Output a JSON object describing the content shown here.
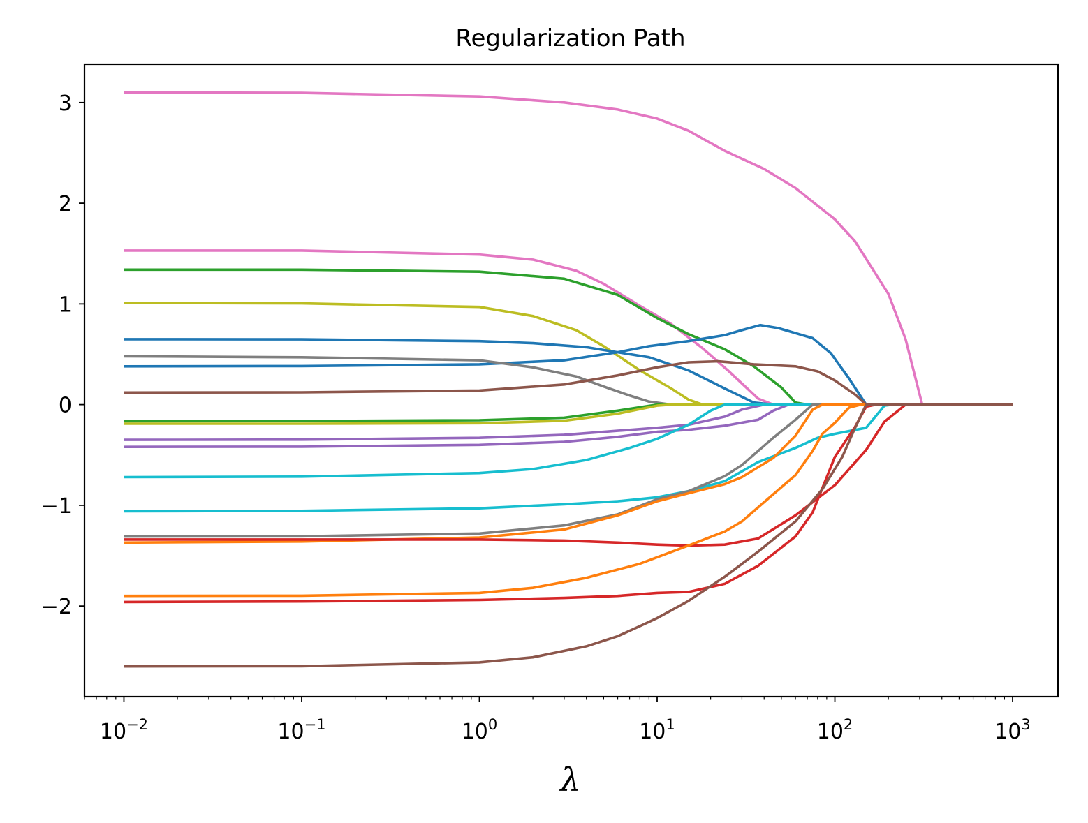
{
  "chart_data": {
    "type": "line",
    "title": "Regularization Path",
    "xlabel": "λ",
    "ylabel": "",
    "xscale": "log",
    "xlim": [
      0.006,
      1800
    ],
    "ylim": [
      -2.9,
      3.38
    ],
    "grid": false,
    "legend": "none",
    "xticks": [
      {
        "value": 0.01,
        "base": "10",
        "exp": "−2"
      },
      {
        "value": 0.1,
        "base": "10",
        "exp": "−1"
      },
      {
        "value": 1,
        "base": "10",
        "exp": "0"
      },
      {
        "value": 10,
        "base": "10",
        "exp": "1"
      },
      {
        "value": 100,
        "base": "10",
        "exp": "2"
      },
      {
        "value": 1000,
        "base": "10",
        "exp": "3"
      }
    ],
    "yticks": [
      {
        "value": 3,
        "label": "3"
      },
      {
        "value": 2,
        "label": "2"
      },
      {
        "value": 1,
        "label": "1"
      },
      {
        "value": 0,
        "label": "0"
      },
      {
        "value": -1,
        "label": "−1"
      },
      {
        "value": -2,
        "label": "−2"
      }
    ],
    "series": [
      {
        "color": "#e377c2",
        "points": [
          [
            0.01,
            3.1
          ],
          [
            0.1,
            3.095
          ],
          [
            1,
            3.06
          ],
          [
            3,
            3.0
          ],
          [
            6,
            2.93
          ],
          [
            10,
            2.84
          ],
          [
            15,
            2.72
          ],
          [
            24,
            2.52
          ],
          [
            40,
            2.34
          ],
          [
            60,
            2.15
          ],
          [
            100,
            1.84
          ],
          [
            130,
            1.62
          ],
          [
            200,
            1.1
          ],
          [
            250,
            0.65
          ],
          [
            310,
            0.0
          ],
          [
            1000,
            0.0
          ]
        ]
      },
      {
        "color": "#e377c2",
        "points": [
          [
            0.01,
            1.53
          ],
          [
            0.1,
            1.53
          ],
          [
            1,
            1.49
          ],
          [
            2,
            1.44
          ],
          [
            3.5,
            1.33
          ],
          [
            5,
            1.2
          ],
          [
            8,
            0.98
          ],
          [
            12,
            0.8
          ],
          [
            18,
            0.56
          ],
          [
            25,
            0.34
          ],
          [
            37,
            0.06
          ],
          [
            45,
            0.0
          ],
          [
            1000,
            0.0
          ]
        ]
      },
      {
        "color": "#2ca02c",
        "points": [
          [
            0.01,
            1.34
          ],
          [
            0.1,
            1.34
          ],
          [
            1,
            1.32
          ],
          [
            3,
            1.25
          ],
          [
            6,
            1.09
          ],
          [
            10,
            0.86
          ],
          [
            15,
            0.7
          ],
          [
            24,
            0.55
          ],
          [
            35,
            0.38
          ],
          [
            50,
            0.17
          ],
          [
            60,
            0.02
          ],
          [
            70,
            0.0
          ],
          [
            1000,
            0.0
          ]
        ]
      },
      {
        "color": "#bcbd22",
        "points": [
          [
            0.01,
            1.01
          ],
          [
            0.1,
            1.005
          ],
          [
            1,
            0.97
          ],
          [
            2,
            0.88
          ],
          [
            3.5,
            0.74
          ],
          [
            5,
            0.58
          ],
          [
            8,
            0.34
          ],
          [
            12,
            0.16
          ],
          [
            15,
            0.05
          ],
          [
            18,
            0.0
          ],
          [
            1000,
            0.0
          ]
        ]
      },
      {
        "color": "#1f77b4",
        "points": [
          [
            0.01,
            0.65
          ],
          [
            0.1,
            0.648
          ],
          [
            1,
            0.63
          ],
          [
            2,
            0.61
          ],
          [
            4,
            0.57
          ],
          [
            6,
            0.52
          ],
          [
            9,
            0.47
          ],
          [
            15,
            0.34
          ],
          [
            24,
            0.16
          ],
          [
            35,
            0.02
          ],
          [
            45,
            0.0
          ],
          [
            1000,
            0.0
          ]
        ]
      },
      {
        "color": "#1f77b4",
        "points": [
          [
            0.01,
            0.38
          ],
          [
            0.1,
            0.383
          ],
          [
            1,
            0.4
          ],
          [
            3,
            0.44
          ],
          [
            6,
            0.52
          ],
          [
            9,
            0.58
          ],
          [
            15,
            0.63
          ],
          [
            24,
            0.69
          ],
          [
            30,
            0.74
          ],
          [
            38,
            0.79
          ],
          [
            48,
            0.76
          ],
          [
            75,
            0.66
          ],
          [
            95,
            0.51
          ],
          [
            120,
            0.26
          ],
          [
            150,
            0.0
          ],
          [
            1000,
            0.0
          ]
        ]
      },
      {
        "color": "#7f7f7f",
        "points": [
          [
            0.01,
            0.48
          ],
          [
            0.1,
            0.47
          ],
          [
            1,
            0.44
          ],
          [
            2,
            0.37
          ],
          [
            3.5,
            0.28
          ],
          [
            5,
            0.18
          ],
          [
            7,
            0.09
          ],
          [
            9,
            0.03
          ],
          [
            12,
            0.0
          ],
          [
            1000,
            0.0
          ]
        ]
      },
      {
        "color": "#8c564b",
        "points": [
          [
            0.01,
            0.12
          ],
          [
            0.1,
            0.122
          ],
          [
            1,
            0.14
          ],
          [
            3,
            0.2
          ],
          [
            6,
            0.29
          ],
          [
            10,
            0.37
          ],
          [
            15,
            0.42
          ],
          [
            22,
            0.43
          ],
          [
            35,
            0.4
          ],
          [
            60,
            0.38
          ],
          [
            80,
            0.33
          ],
          [
            100,
            0.24
          ],
          [
            130,
            0.1
          ],
          [
            150,
            0.0
          ],
          [
            1000,
            0.0
          ]
        ]
      },
      {
        "color": "#2ca02c",
        "points": [
          [
            0.01,
            -0.165
          ],
          [
            0.1,
            -0.163
          ],
          [
            1,
            -0.155
          ],
          [
            3,
            -0.13
          ],
          [
            6,
            -0.06
          ],
          [
            10,
            0.0
          ],
          [
            1000,
            0.0
          ]
        ]
      },
      {
        "color": "#bcbd22",
        "points": [
          [
            0.01,
            -0.19
          ],
          [
            0.1,
            -0.19
          ],
          [
            1,
            -0.185
          ],
          [
            3,
            -0.16
          ],
          [
            6,
            -0.09
          ],
          [
            10,
            -0.01
          ],
          [
            12,
            0.0
          ],
          [
            1000,
            0.0
          ]
        ]
      },
      {
        "color": "#9467bd",
        "points": [
          [
            0.01,
            -0.35
          ],
          [
            0.1,
            -0.348
          ],
          [
            1,
            -0.33
          ],
          [
            3,
            -0.3
          ],
          [
            6,
            -0.26
          ],
          [
            10,
            -0.23
          ],
          [
            15,
            -0.2
          ],
          [
            24,
            -0.12
          ],
          [
            30,
            -0.05
          ],
          [
            40,
            0.0
          ],
          [
            1000,
            0.0
          ]
        ]
      },
      {
        "color": "#9467bd",
        "points": [
          [
            0.01,
            -0.42
          ],
          [
            0.1,
            -0.418
          ],
          [
            1,
            -0.4
          ],
          [
            3,
            -0.37
          ],
          [
            6,
            -0.32
          ],
          [
            10,
            -0.27
          ],
          [
            15,
            -0.25
          ],
          [
            24,
            -0.21
          ],
          [
            37,
            -0.15
          ],
          [
            45,
            -0.06
          ],
          [
            55,
            0.0
          ],
          [
            1000,
            0.0
          ]
        ]
      },
      {
        "color": "#17becf",
        "points": [
          [
            0.01,
            -0.72
          ],
          [
            0.1,
            -0.715
          ],
          [
            1,
            -0.68
          ],
          [
            2,
            -0.64
          ],
          [
            4,
            -0.55
          ],
          [
            7,
            -0.43
          ],
          [
            10,
            -0.34
          ],
          [
            15,
            -0.2
          ],
          [
            20,
            -0.06
          ],
          [
            24,
            0.0
          ],
          [
            1000,
            0.0
          ]
        ]
      },
      {
        "color": "#17becf",
        "points": [
          [
            0.01,
            -1.06
          ],
          [
            0.1,
            -1.055
          ],
          [
            1,
            -1.03
          ],
          [
            3,
            -0.99
          ],
          [
            6,
            -0.96
          ],
          [
            10,
            -0.92
          ],
          [
            15,
            -0.86
          ],
          [
            24,
            -0.76
          ],
          [
            37,
            -0.57
          ],
          [
            60,
            -0.43
          ],
          [
            80,
            -0.33
          ],
          [
            100,
            -0.29
          ],
          [
            150,
            -0.23
          ],
          [
            190,
            -0.01
          ],
          [
            210,
            0.0
          ],
          [
            1000,
            0.0
          ]
        ]
      },
      {
        "color": "#7f7f7f",
        "points": [
          [
            0.01,
            -1.31
          ],
          [
            0.1,
            -1.308
          ],
          [
            1,
            -1.28
          ],
          [
            3,
            -1.2
          ],
          [
            6,
            -1.09
          ],
          [
            10,
            -0.94
          ],
          [
            15,
            -0.86
          ],
          [
            24,
            -0.71
          ],
          [
            30,
            -0.6
          ],
          [
            45,
            -0.33
          ],
          [
            60,
            -0.15
          ],
          [
            75,
            0.0
          ],
          [
            1000,
            0.0
          ]
        ]
      },
      {
        "color": "#ff7f0e",
        "points": [
          [
            0.01,
            -1.37
          ],
          [
            0.1,
            -1.36
          ],
          [
            1,
            -1.32
          ],
          [
            3,
            -1.24
          ],
          [
            6,
            -1.1
          ],
          [
            10,
            -0.96
          ],
          [
            15,
            -0.88
          ],
          [
            24,
            -0.79
          ],
          [
            30,
            -0.72
          ],
          [
            45,
            -0.53
          ],
          [
            60,
            -0.31
          ],
          [
            75,
            -0.05
          ],
          [
            85,
            0.0
          ],
          [
            1000,
            0.0
          ]
        ]
      },
      {
        "color": "#d62728",
        "points": [
          [
            0.01,
            -1.34
          ],
          [
            0.1,
            -1.34
          ],
          [
            1,
            -1.34
          ],
          [
            3,
            -1.35
          ],
          [
            6,
            -1.37
          ],
          [
            10,
            -1.39
          ],
          [
            15,
            -1.4
          ],
          [
            24,
            -1.39
          ],
          [
            37,
            -1.33
          ],
          [
            60,
            -1.1
          ],
          [
            100,
            -0.8
          ],
          [
            150,
            -0.45
          ],
          [
            190,
            -0.17
          ],
          [
            250,
            0.0
          ],
          [
            1000,
            0.0
          ]
        ]
      },
      {
        "color": "#ff7f0e",
        "points": [
          [
            0.01,
            -1.9
          ],
          [
            0.1,
            -1.898
          ],
          [
            1,
            -1.87
          ],
          [
            2,
            -1.82
          ],
          [
            4,
            -1.72
          ],
          [
            8,
            -1.58
          ],
          [
            15,
            -1.4
          ],
          [
            24,
            -1.26
          ],
          [
            30,
            -1.16
          ],
          [
            45,
            -0.89
          ],
          [
            60,
            -0.7
          ],
          [
            75,
            -0.46
          ],
          [
            85,
            -0.29
          ],
          [
            100,
            -0.18
          ],
          [
            120,
            -0.03
          ],
          [
            140,
            0.0
          ],
          [
            1000,
            0.0
          ]
        ]
      },
      {
        "color": "#d62728",
        "points": [
          [
            0.01,
            -1.96
          ],
          [
            0.1,
            -1.955
          ],
          [
            1,
            -1.94
          ],
          [
            3,
            -1.92
          ],
          [
            6,
            -1.9
          ],
          [
            10,
            -1.87
          ],
          [
            15,
            -1.86
          ],
          [
            24,
            -1.78
          ],
          [
            37,
            -1.6
          ],
          [
            60,
            -1.31
          ],
          [
            75,
            -1.07
          ],
          [
            100,
            -0.52
          ],
          [
            130,
            -0.22
          ],
          [
            150,
            -0.02
          ],
          [
            170,
            0.0
          ],
          [
            1000,
            0.0
          ]
        ]
      },
      {
        "color": "#8c564b",
        "points": [
          [
            0.01,
            -2.6
          ],
          [
            0.1,
            -2.598
          ],
          [
            1,
            -2.56
          ],
          [
            2,
            -2.51
          ],
          [
            4,
            -2.4
          ],
          [
            6,
            -2.3
          ],
          [
            8,
            -2.2
          ],
          [
            10,
            -2.12
          ],
          [
            15,
            -1.95
          ],
          [
            24,
            -1.71
          ],
          [
            37,
            -1.46
          ],
          [
            60,
            -1.16
          ],
          [
            85,
            -0.84
          ],
          [
            110,
            -0.52
          ],
          [
            130,
            -0.23
          ],
          [
            150,
            0.0
          ],
          [
            1000,
            0.0
          ]
        ]
      }
    ]
  }
}
